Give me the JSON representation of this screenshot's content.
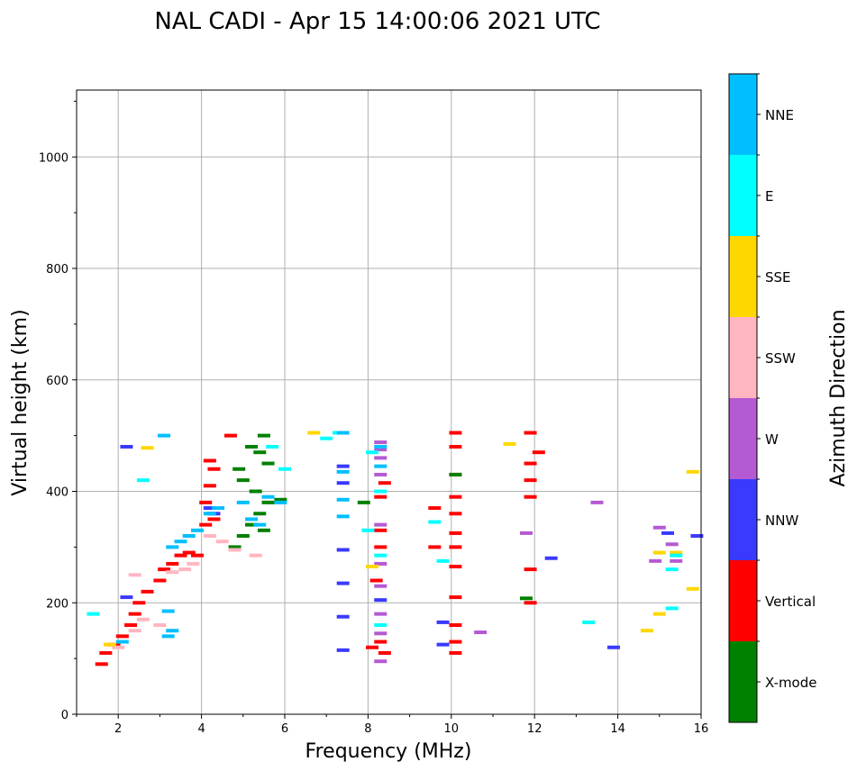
{
  "chart_data": {
    "type": "scatter",
    "title": "NAL CADI - Apr 15 14:00:06 2021 UTC",
    "xlabel": "Frequency (MHz)",
    "ylabel": "Virtual height (km)",
    "xlim": [
      1,
      16
    ],
    "ylim": [
      0,
      1120
    ],
    "xticks": [
      2,
      4,
      6,
      8,
      10,
      12,
      14,
      16
    ],
    "yticks": [
      0,
      200,
      400,
      600,
      800,
      1000
    ],
    "grid": true,
    "colorbar": {
      "label": "Azimuth Direction",
      "categories": [
        {
          "name": "X-mode",
          "color": "#008000"
        },
        {
          "name": "Vertical",
          "color": "#ff0000"
        },
        {
          "name": "NNW",
          "color": "#3a3aff"
        },
        {
          "name": "W",
          "color": "#b45ad2"
        },
        {
          "name": "SSW",
          "color": "#ffb6c1"
        },
        {
          "name": "SSE",
          "color": "#ffd700"
        },
        {
          "name": "E",
          "color": "#00ffff"
        },
        {
          "name": "NNE",
          "color": "#00bfff"
        }
      ]
    },
    "series": [
      {
        "name": "Vertical",
        "color": "#ff0000",
        "points": [
          [
            1.6,
            90
          ],
          [
            1.7,
            110
          ],
          [
            1.9,
            125
          ],
          [
            2.1,
            140
          ],
          [
            2.3,
            160
          ],
          [
            2.4,
            180
          ],
          [
            2.5,
            200
          ],
          [
            2.7,
            220
          ],
          [
            3.0,
            240
          ],
          [
            3.1,
            260
          ],
          [
            3.3,
            270
          ],
          [
            3.5,
            285
          ],
          [
            3.7,
            290
          ],
          [
            3.9,
            285
          ],
          [
            4.1,
            340
          ],
          [
            4.3,
            350
          ],
          [
            4.1,
            380
          ],
          [
            4.2,
            410
          ],
          [
            4.3,
            440
          ],
          [
            4.2,
            455
          ],
          [
            4.7,
            500
          ],
          [
            8.1,
            120
          ],
          [
            8.3,
            130
          ],
          [
            8.4,
            110
          ],
          [
            8.2,
            240
          ],
          [
            8.3,
            300
          ],
          [
            8.3,
            330
          ],
          [
            8.3,
            390
          ],
          [
            8.4,
            415
          ],
          [
            10.1,
            110
          ],
          [
            10.1,
            130
          ],
          [
            10.1,
            160
          ],
          [
            10.1,
            210
          ],
          [
            10.1,
            265
          ],
          [
            10.1,
            300
          ],
          [
            10.1,
            325
          ],
          [
            10.1,
            360
          ],
          [
            10.1,
            390
          ],
          [
            10.1,
            430
          ],
          [
            10.1,
            480
          ],
          [
            10.1,
            505
          ],
          [
            9.6,
            300
          ],
          [
            9.6,
            370
          ],
          [
            11.9,
            200
          ],
          [
            11.9,
            260
          ],
          [
            11.9,
            390
          ],
          [
            11.9,
            420
          ],
          [
            11.9,
            450
          ],
          [
            11.9,
            505
          ],
          [
            12.1,
            470
          ]
        ]
      },
      {
        "name": "X-mode",
        "color": "#008000",
        "points": [
          [
            4.8,
            300
          ],
          [
            5.0,
            320
          ],
          [
            5.2,
            340
          ],
          [
            5.4,
            360
          ],
          [
            5.6,
            380
          ],
          [
            5.5,
            330
          ],
          [
            5.3,
            400
          ],
          [
            5.0,
            420
          ],
          [
            4.9,
            440
          ],
          [
            5.4,
            470
          ],
          [
            5.6,
            450
          ],
          [
            5.5,
            500
          ],
          [
            5.2,
            480
          ],
          [
            5.9,
            385
          ],
          [
            11.8,
            208
          ],
          [
            10.1,
            430
          ],
          [
            7.9,
            380
          ]
        ]
      },
      {
        "name": "NNW",
        "color": "#3a3aff",
        "points": [
          [
            4.2,
            370
          ],
          [
            4.3,
            360
          ],
          [
            7.4,
            115
          ],
          [
            7.4,
            175
          ],
          [
            7.4,
            235
          ],
          [
            7.4,
            295
          ],
          [
            7.4,
            415
          ],
          [
            7.4,
            445
          ],
          [
            8.3,
            205
          ],
          [
            9.8,
            125
          ],
          [
            9.8,
            165
          ],
          [
            12.4,
            280
          ],
          [
            13.9,
            120
          ],
          [
            15.2,
            325
          ],
          [
            15.9,
            320
          ],
          [
            2.2,
            480
          ],
          [
            2.2,
            210
          ]
        ]
      },
      {
        "name": "W",
        "color": "#b45ad2",
        "points": [
          [
            8.3,
            95
          ],
          [
            8.3,
            145
          ],
          [
            8.3,
            180
          ],
          [
            8.3,
            230
          ],
          [
            8.3,
            270
          ],
          [
            8.3,
            340
          ],
          [
            8.3,
            430
          ],
          [
            8.3,
            460
          ],
          [
            8.3,
            475
          ],
          [
            8.3,
            488
          ],
          [
            10.7,
            147
          ],
          [
            13.5,
            380
          ],
          [
            15.0,
            335
          ],
          [
            15.3,
            305
          ],
          [
            15.4,
            275
          ],
          [
            11.8,
            325
          ],
          [
            14.9,
            275
          ]
        ]
      },
      {
        "name": "SSW",
        "color": "#ffb6c1",
        "points": [
          [
            2.0,
            120
          ],
          [
            2.4,
            150
          ],
          [
            2.6,
            170
          ],
          [
            3.0,
            160
          ],
          [
            3.3,
            255
          ],
          [
            3.6,
            260
          ],
          [
            3.8,
            270
          ],
          [
            4.2,
            320
          ],
          [
            4.5,
            310
          ],
          [
            4.8,
            295
          ],
          [
            5.3,
            285
          ],
          [
            2.4,
            250
          ]
        ]
      },
      {
        "name": "SSE",
        "color": "#ffd700",
        "points": [
          [
            6.7,
            505
          ],
          [
            8.1,
            265
          ],
          [
            11.4,
            485
          ],
          [
            13.3,
            165
          ],
          [
            14.7,
            150
          ],
          [
            15.0,
            180
          ],
          [
            15.0,
            290
          ],
          [
            15.4,
            290
          ],
          [
            15.8,
            225
          ],
          [
            15.8,
            435
          ],
          [
            1.8,
            125
          ],
          [
            2.7,
            478
          ]
        ]
      },
      {
        "name": "E",
        "color": "#00ffff",
        "points": [
          [
            7.0,
            495
          ],
          [
            7.3,
            505
          ],
          [
            8.1,
            470
          ],
          [
            8.3,
            160
          ],
          [
            8.3,
            285
          ],
          [
            8.3,
            400
          ],
          [
            9.6,
            345
          ],
          [
            9.8,
            275
          ],
          [
            13.3,
            165
          ],
          [
            15.3,
            190
          ],
          [
            15.3,
            260
          ],
          [
            15.4,
            285
          ],
          [
            5.7,
            480
          ],
          [
            6.0,
            440
          ],
          [
            1.4,
            180
          ],
          [
            2.6,
            420
          ],
          [
            8.0,
            330
          ]
        ]
      },
      {
        "name": "NNE",
        "color": "#00bfff",
        "points": [
          [
            3.2,
            140
          ],
          [
            3.3,
            150
          ],
          [
            3.2,
            185
          ],
          [
            3.3,
            300
          ],
          [
            3.5,
            310
          ],
          [
            3.7,
            320
          ],
          [
            3.9,
            330
          ],
          [
            4.2,
            360
          ],
          [
            4.4,
            370
          ],
          [
            5.0,
            380
          ],
          [
            5.2,
            350
          ],
          [
            5.4,
            340
          ],
          [
            5.6,
            390
          ],
          [
            5.9,
            380
          ],
          [
            7.4,
            355
          ],
          [
            7.4,
            385
          ],
          [
            7.4,
            435
          ],
          [
            7.4,
            505
          ],
          [
            8.3,
            445
          ],
          [
            8.3,
            480
          ],
          [
            2.1,
            130
          ],
          [
            3.1,
            500
          ]
        ]
      }
    ]
  }
}
